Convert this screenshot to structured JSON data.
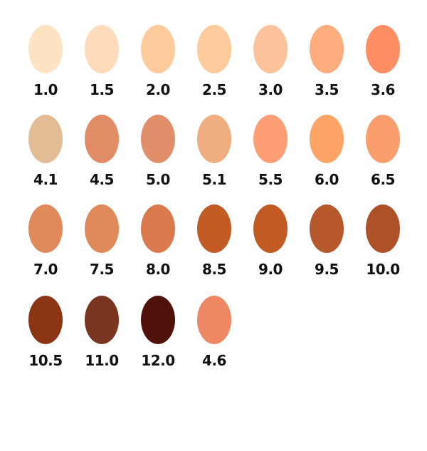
{
  "swatches": [
    {
      "label": "1.0",
      "color": "#fde3c2"
    },
    {
      "label": "1.5",
      "color": "#fddbbb"
    },
    {
      "label": "2.0",
      "color": "#fdcb9c"
    },
    {
      "label": "2.5",
      "color": "#fdcb9b"
    },
    {
      "label": "3.0",
      "color": "#fcc29c"
    },
    {
      "label": "3.5",
      "color": "#fdac7e"
    },
    {
      "label": "3.6",
      "color": "#fe8d63"
    },
    {
      "label": "4.1",
      "color": "#e3bc95"
    },
    {
      "label": "4.5",
      "color": "#e18c66"
    },
    {
      "label": "5.0",
      "color": "#e18e6a"
    },
    {
      "label": "5.1",
      "color": "#f0ad7f"
    },
    {
      "label": "5.5",
      "color": "#fd9e74"
    },
    {
      "label": "6.0",
      "color": "#fea467"
    },
    {
      "label": "6.5",
      "color": "#f99e6c"
    },
    {
      "label": "7.0",
      "color": "#e08a5c"
    },
    {
      "label": "7.5",
      "color": "#e08a5c"
    },
    {
      "label": "8.0",
      "color": "#dc7a4f"
    },
    {
      "label": "8.5",
      "color": "#c25a24"
    },
    {
      "label": "9.0",
      "color": "#c25a24"
    },
    {
      "label": "9.5",
      "color": "#b6582c"
    },
    {
      "label": "10.0",
      "color": "#ae5128"
    },
    {
      "label": "10.5",
      "color": "#8b3514"
    },
    {
      "label": "11.0",
      "color": "#7a3520"
    },
    {
      "label": "12.0",
      "color": "#4e120b"
    },
    {
      "label": "4.6",
      "color": "#ee8763"
    }
  ]
}
